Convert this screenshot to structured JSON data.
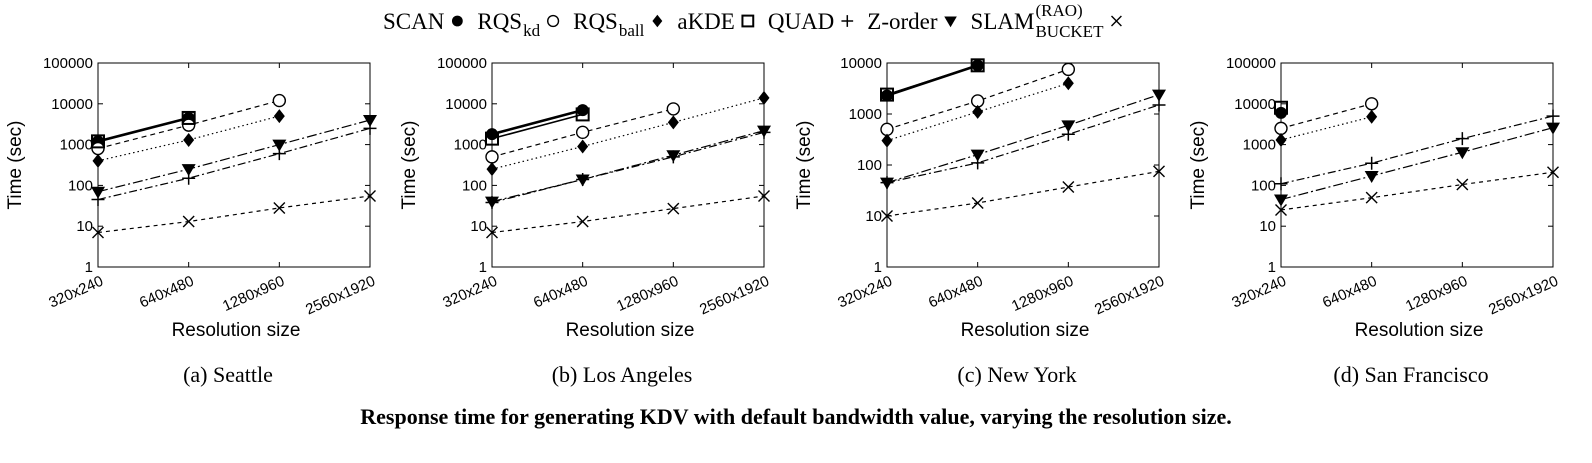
{
  "legend": {
    "placement": "top-center",
    "entries": [
      {
        "name": "SCAN",
        "marker": "filled-circle-icon"
      },
      {
        "name": "RQS",
        "sub": "kd",
        "marker": "open-circle-icon"
      },
      {
        "name": "RQS",
        "sub": "ball",
        "marker": "filled-diamond-icon"
      },
      {
        "name": "aKDE",
        "marker": "open-square-icon"
      },
      {
        "name": "QUAD",
        "marker": "plus-icon"
      },
      {
        "name": "Z-order",
        "marker": "filled-triangle-down-icon"
      },
      {
        "name": "SLAM",
        "sup": "(RAO)",
        "sub": "BUCKET",
        "marker": "cross-icon"
      }
    ]
  },
  "caption": "Response time for generating KDV with default bandwidth value, varying the resolution size.",
  "chart_data": [
    {
      "type": "line",
      "subtitle": "(a) Seattle",
      "xlabel": "Resolution size",
      "ylabel": "Time (sec)",
      "y_scale": "log",
      "ylim": [
        1,
        100000
      ],
      "y_ticks": [
        "1",
        "10",
        "100",
        "1000",
        "10000",
        "100000"
      ],
      "categories": [
        "320x240",
        "640x480",
        "1280x960",
        "2560x1920"
      ],
      "grid": false,
      "series": [
        {
          "name": "SCAN",
          "values": [
            1200,
            4500,
            null,
            null
          ]
        },
        {
          "name": "RQS_kd",
          "values": [
            800,
            3000,
            12000,
            null
          ]
        },
        {
          "name": "RQS_ball",
          "values": [
            400,
            1300,
            5000,
            null
          ]
        },
        {
          "name": "aKDE",
          "values": [
            1200,
            4500,
            null,
            null
          ]
        },
        {
          "name": "QUAD",
          "values": [
            45,
            150,
            600,
            2500
          ]
        },
        {
          "name": "Z-order",
          "values": [
            70,
            250,
            1000,
            4000
          ]
        },
        {
          "name": "SLAM_BUCKET(RAO)",
          "values": [
            7,
            13,
            28,
            55
          ]
        }
      ]
    },
    {
      "type": "line",
      "subtitle": "(b) Los Angeles",
      "xlabel": "Resolution size",
      "ylabel": "Time (sec)",
      "y_scale": "log",
      "ylim": [
        1,
        100000
      ],
      "y_ticks": [
        "1",
        "10",
        "100",
        "1000",
        "10000",
        "100000"
      ],
      "categories": [
        "320x240",
        "640x480",
        "1280x960",
        "2560x1920"
      ],
      "grid": false,
      "series": [
        {
          "name": "SCAN",
          "values": [
            1800,
            7000,
            null,
            null
          ]
        },
        {
          "name": "RQS_kd",
          "values": [
            500,
            2000,
            7500,
            null
          ]
        },
        {
          "name": "RQS_ball",
          "values": [
            250,
            900,
            3500,
            14000
          ]
        },
        {
          "name": "aKDE",
          "values": [
            1400,
            5500,
            null,
            null
          ]
        },
        {
          "name": "QUAD",
          "values": [
            38,
            140,
            500,
            2000
          ]
        },
        {
          "name": "Z-order",
          "values": [
            40,
            140,
            550,
            2200
          ]
        },
        {
          "name": "SLAM_BUCKET(RAO)",
          "values": [
            7,
            13,
            27,
            55
          ]
        }
      ]
    },
    {
      "type": "line",
      "subtitle": "(c) New York",
      "xlabel": "Resolution size",
      "ylabel": "Time (sec)",
      "y_scale": "log",
      "ylim": [
        1,
        10000
      ],
      "y_ticks": [
        "1",
        "10",
        "100",
        "1000",
        "10000"
      ],
      "categories": [
        "320x240",
        "640x480",
        "1280x960",
        "2560x1920"
      ],
      "grid": false,
      "series": [
        {
          "name": "SCAN",
          "values": [
            2300,
            9000,
            null,
            null
          ]
        },
        {
          "name": "RQS_kd",
          "values": [
            500,
            1800,
            7500,
            null
          ]
        },
        {
          "name": "RQS_ball",
          "values": [
            300,
            1100,
            4000,
            null
          ]
        },
        {
          "name": "aKDE",
          "values": [
            2400,
            9000,
            null,
            null
          ]
        },
        {
          "name": "QUAD",
          "values": [
            45,
            110,
            400,
            1500
          ]
        },
        {
          "name": "Z-order",
          "values": [
            45,
            160,
            600,
            2400
          ]
        },
        {
          "name": "SLAM_BUCKET(RAO)",
          "values": [
            10,
            18,
            37,
            75
          ]
        }
      ]
    },
    {
      "type": "line",
      "subtitle": "(d) San Francisco",
      "xlabel": "Resolution size",
      "ylabel": "Time (sec)",
      "y_scale": "log",
      "ylim": [
        1,
        100000
      ],
      "y_ticks": [
        "1",
        "10",
        "100",
        "1000",
        "10000",
        "100000"
      ],
      "categories": [
        "320x240",
        "640x480",
        "1280x960",
        "2560x1920"
      ],
      "grid": false,
      "series": [
        {
          "name": "SCAN",
          "values": [
            6000,
            null,
            null,
            null
          ]
        },
        {
          "name": "RQS_kd",
          "values": [
            2500,
            10000,
            null,
            null
          ]
        },
        {
          "name": "RQS_ball",
          "values": [
            1300,
            4800,
            null,
            null
          ]
        },
        {
          "name": "aKDE",
          "values": [
            8000,
            null,
            null,
            null
          ]
        },
        {
          "name": "QUAD",
          "values": [
            110,
            350,
            1400,
            5000
          ]
        },
        {
          "name": "Z-order",
          "values": [
            45,
            170,
            650,
            2600
          ]
        },
        {
          "name": "SLAM_BUCKET(RAO)",
          "values": [
            25,
            50,
            105,
            210
          ]
        }
      ]
    }
  ]
}
